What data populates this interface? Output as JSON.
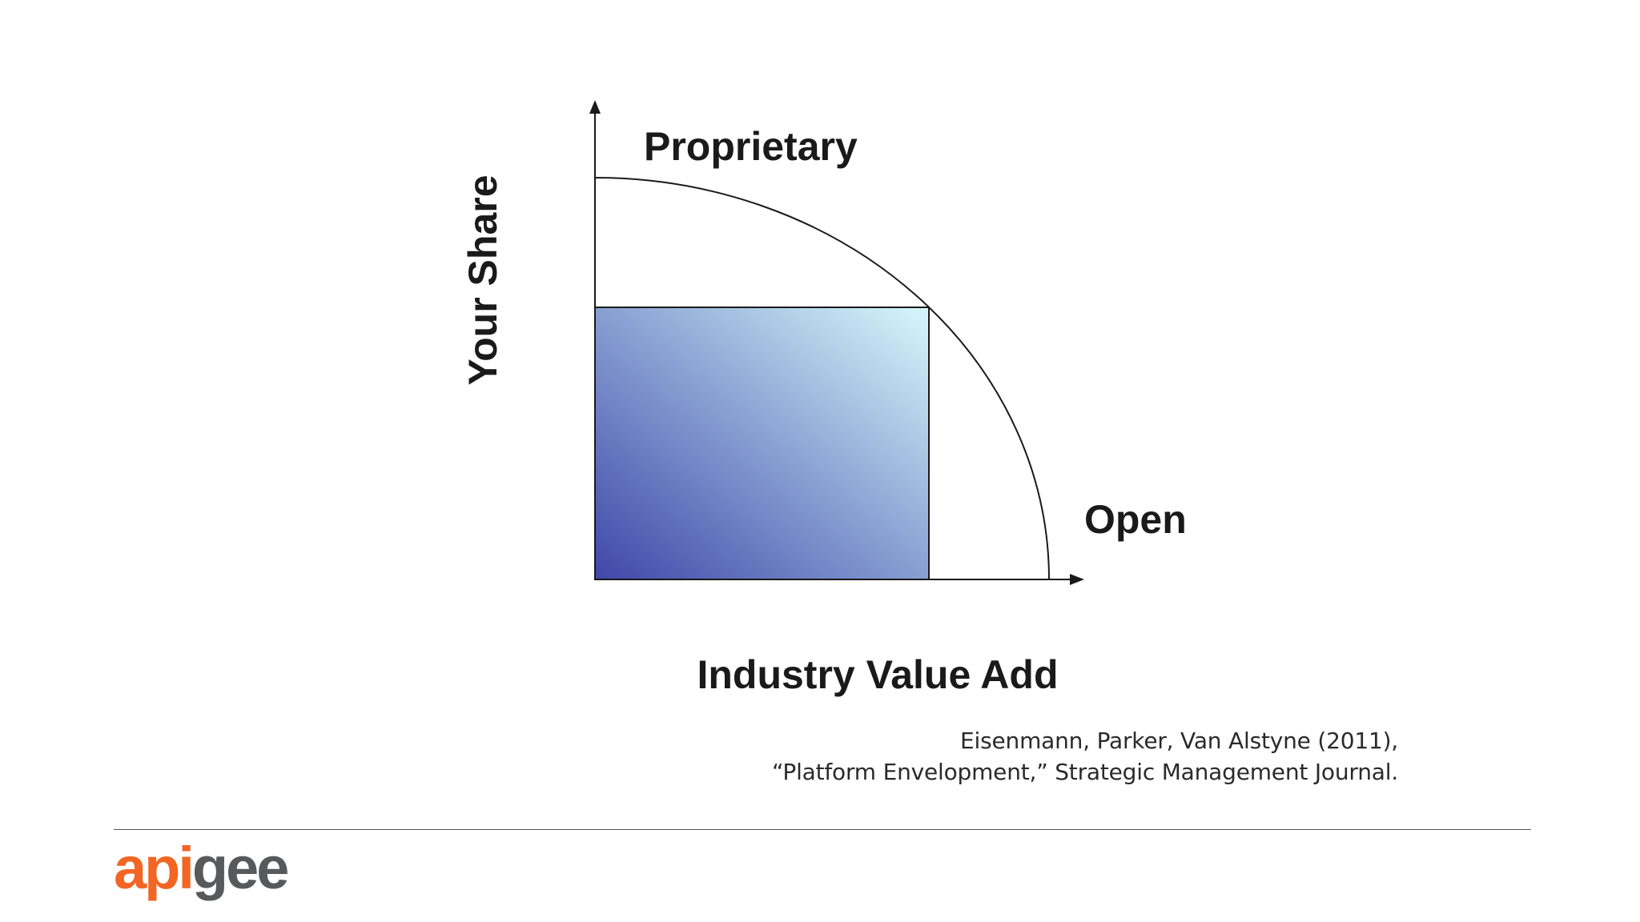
{
  "diagram": {
    "y_axis_label": "Your Share",
    "x_axis_label": "Industry Value Add",
    "curve_top_label": "Proprietary",
    "curve_bottom_label": "Open",
    "gradient_colors": {
      "bottom_left": "#3f47a8",
      "top_right": "#d6f8fb"
    },
    "line_color": "#1a1a1a"
  },
  "citation": {
    "line1": "Eisenmann, Parker, Van Alstyne (2011),",
    "line2": "“Platform Envelopment,” Strategic Management Journal."
  },
  "footer": {
    "logo_part1": "api",
    "logo_part2": "gee",
    "brand_color_primary": "#f26522",
    "brand_color_secondary": "#58595b"
  }
}
